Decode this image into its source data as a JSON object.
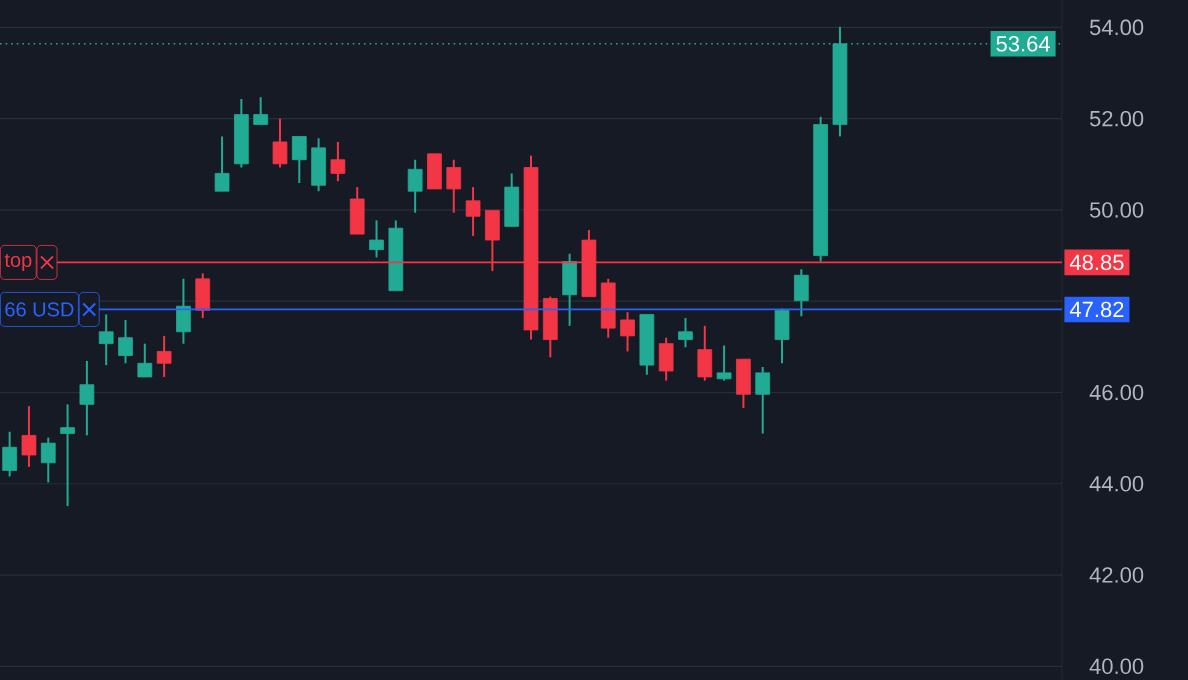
{
  "chart_data": {
    "type": "candlestick",
    "categories": [
      null,
      null,
      null,
      null,
      null,
      null,
      null,
      null,
      null,
      null,
      null,
      null,
      null,
      null,
      null,
      null,
      null,
      null,
      null,
      null,
      null,
      null,
      null,
      null,
      null,
      null,
      null,
      null,
      null,
      null,
      null,
      null,
      null,
      null,
      null,
      null,
      null,
      null,
      null,
      null,
      null,
      null,
      null,
      null,
      null,
      null,
      null,
      null,
      null,
      null,
      null,
      null,
      null,
      null,
      null
    ],
    "ohlc": [
      [
        44.29,
        45.14,
        44.16,
        44.8
      ],
      [
        45.06,
        45.7,
        44.37,
        44.63
      ],
      [
        44.46,
        45.01,
        44.03,
        44.89
      ],
      [
        45.1,
        45.74,
        43.51,
        45.23
      ],
      [
        45.74,
        46.69,
        45.06,
        46.17
      ],
      [
        47.07,
        47.71,
        46.6,
        47.33
      ],
      [
        46.81,
        47.59,
        46.64,
        47.2
      ],
      [
        46.34,
        47.07,
        46.34,
        46.64
      ],
      [
        46.9,
        47.24,
        46.34,
        46.64
      ],
      [
        47.33,
        48.49,
        47.07,
        47.89
      ],
      [
        48.49,
        48.61,
        47.63,
        47.8
      ],
      [
        50.41,
        51.61,
        50.41,
        50.8
      ],
      [
        51.01,
        52.43,
        50.93,
        52.09
      ],
      [
        51.87,
        52.47,
        51.87,
        52.09
      ],
      [
        51.49,
        52.0,
        50.93,
        51.01
      ],
      [
        51.1,
        51.61,
        50.59,
        51.61
      ],
      [
        50.54,
        51.57,
        50.41,
        51.36
      ],
      [
        51.1,
        51.49,
        50.63,
        50.8
      ],
      [
        50.24,
        50.5,
        49.47,
        49.47
      ],
      [
        49.13,
        49.77,
        48.96,
        49.34
      ],
      [
        48.23,
        49.77,
        48.23,
        49.6
      ],
      [
        50.41,
        51.1,
        49.94,
        50.89
      ],
      [
        51.23,
        51.23,
        50.46,
        50.46
      ],
      [
        50.93,
        51.1,
        49.94,
        50.46
      ],
      [
        50.2,
        50.5,
        49.43,
        49.86
      ],
      [
        49.99,
        49.99,
        48.66,
        49.34
      ],
      [
        49.64,
        50.8,
        49.64,
        50.5
      ],
      [
        50.93,
        51.19,
        47.16,
        47.37
      ],
      [
        48.06,
        48.1,
        46.77,
        47.16
      ],
      [
        48.14,
        49.04,
        47.46,
        48.87
      ],
      [
        49.34,
        49.56,
        48.1,
        48.1
      ],
      [
        48.4,
        48.49,
        47.2,
        47.41
      ],
      [
        47.59,
        47.76,
        46.9,
        47.24
      ],
      [
        46.6,
        47.71,
        46.39,
        47.71
      ],
      [
        47.07,
        47.2,
        46.26,
        46.47
      ],
      [
        47.16,
        47.63,
        46.99,
        47.33
      ],
      [
        46.94,
        47.46,
        46.26,
        46.34
      ],
      [
        46.3,
        47.03,
        46.26,
        46.43
      ],
      [
        46.73,
        46.73,
        45.66,
        45.96
      ],
      [
        45.96,
        46.56,
        45.1,
        46.43
      ],
      [
        47.16,
        47.84,
        46.64,
        47.8
      ],
      [
        48.01,
        48.7,
        47.67,
        48.57
      ],
      [
        49.0,
        52.04,
        48.87,
        51.87
      ],
      [
        51.87,
        54.01,
        51.61,
        53.64
      ],
      null,
      null,
      null,
      null,
      null,
      null,
      null,
      null,
      null,
      null,
      null
    ],
    "colors": [
      "#22ab94",
      "#f23645",
      "#22ab94",
      "#22ab94",
      "#22ab94",
      "#22ab94",
      "#22ab94",
      "#22ab94",
      "#f23645",
      "#22ab94",
      "#f23645",
      "#22ab94",
      "#22ab94",
      "#22ab94",
      "#f23645",
      "#22ab94",
      "#22ab94",
      "#f23645",
      "#f23645",
      "#22ab94",
      "#22ab94",
      "#22ab94",
      "#f23645",
      "#f23645",
      "#f23645",
      "#f23645",
      "#22ab94",
      "#f23645",
      "#f23645",
      "#22ab94",
      "#f23645",
      "#f23645",
      "#f23645",
      "#22ab94",
      "#f23645",
      "#22ab94",
      "#f23645",
      "#22ab94",
      "#f23645",
      "#22ab94",
      "#22ab94",
      "#22ab94",
      "#22ab94",
      "#22ab94",
      null,
      null,
      null,
      null,
      null,
      null,
      null,
      null,
      null,
      null,
      null
    ],
    "ylim": [
      39.7,
      54.6
    ],
    "yticks": [
      {
        "value": 40,
        "label": "40.00"
      },
      {
        "value": 42,
        "label": "42.00"
      },
      {
        "value": 44,
        "label": "44.00"
      },
      {
        "value": 46,
        "label": "46.00"
      },
      {
        "value": 48,
        "label": null
      },
      {
        "value": 50,
        "label": "50.00"
      },
      {
        "value": 52,
        "label": "52.00"
      },
      {
        "value": 54,
        "label": "54.00"
      }
    ],
    "grid": "y",
    "ref_lines": [
      {
        "axis": "y",
        "value": 48.85,
        "label": "48.85",
        "color": "#f23645",
        "line_style": "solid"
      },
      {
        "axis": "y",
        "value": 47.82,
        "label": "47.82",
        "color": "#2962ff",
        "line_style": "solid"
      },
      {
        "axis": "y",
        "value": 53.64,
        "label": "53.64",
        "color": "#22ab94",
        "line_style": "dotted"
      }
    ],
    "annotations": [
      {
        "text": "top",
        "y": 48.85
      },
      {
        "text": "66 USD",
        "y": 47.82
      }
    ]
  }
}
